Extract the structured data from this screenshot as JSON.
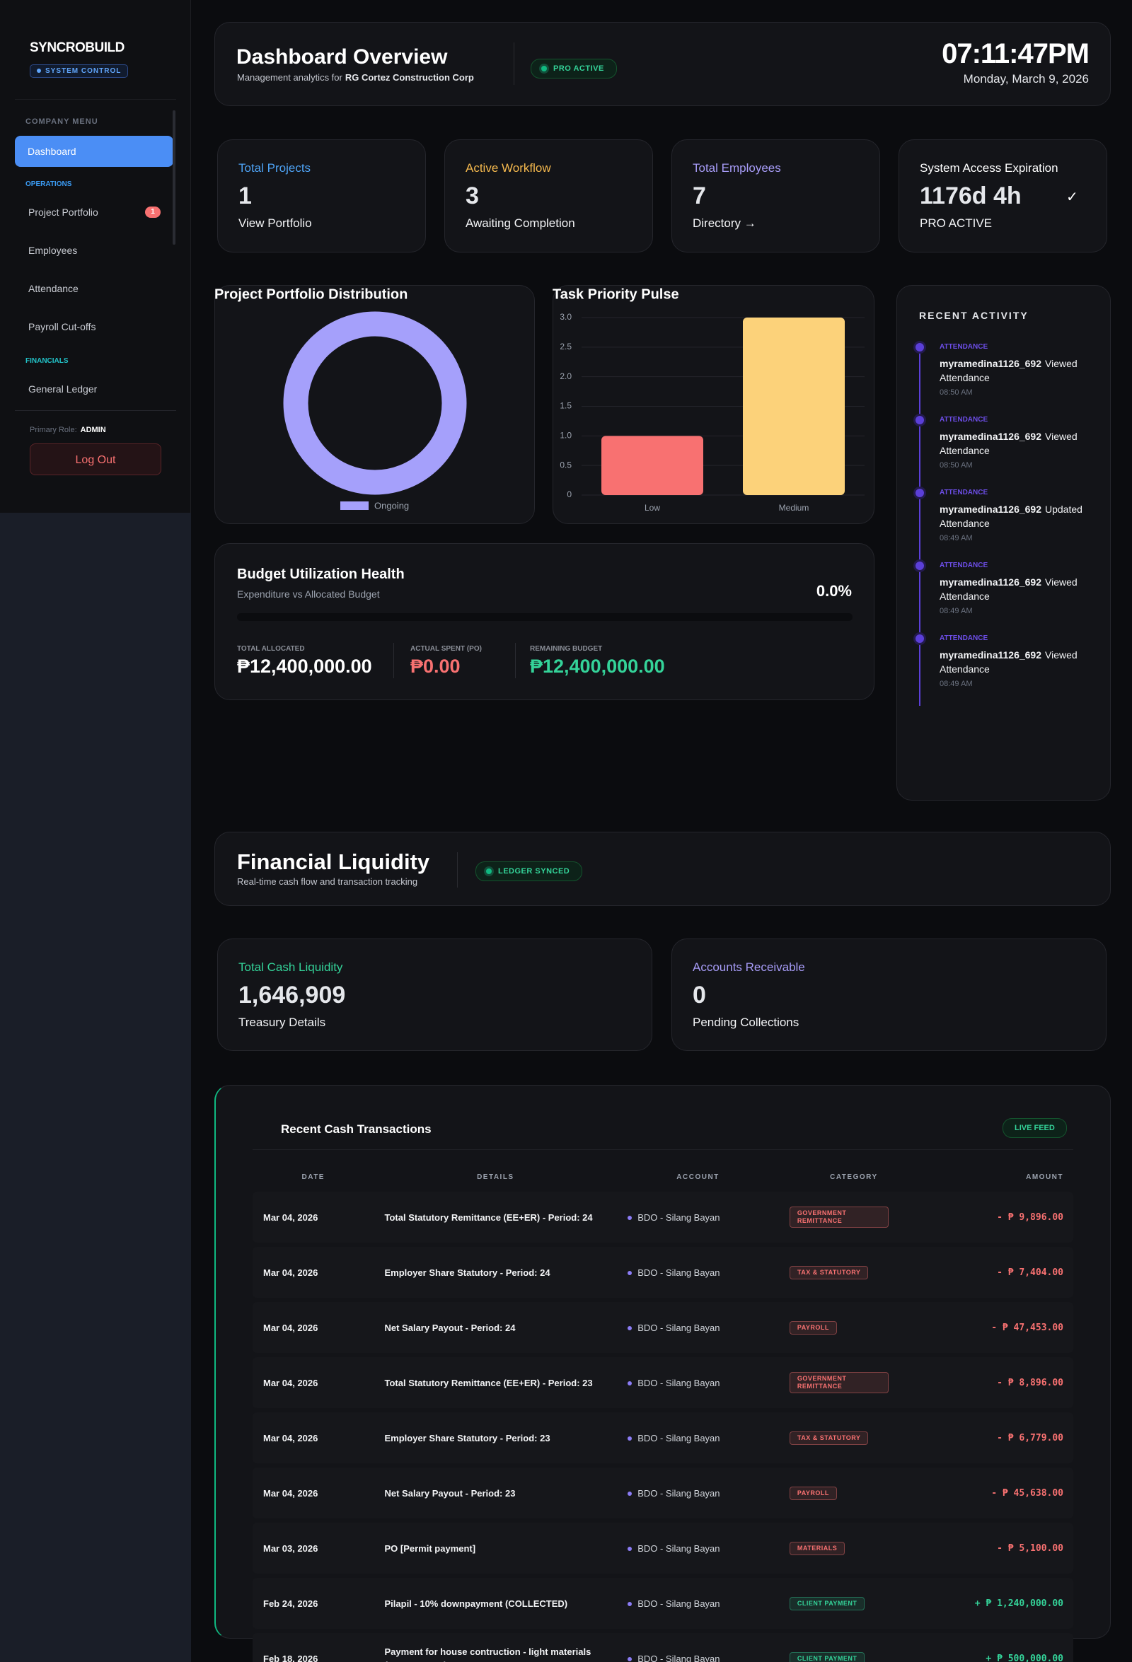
{
  "sidebar": {
    "brand": "SYNCROBUILD",
    "badge": "SYSTEM CONTROL",
    "menu_title": "COMPANY MENU",
    "active": "Dashboard",
    "operations_title": "OPERATIONS",
    "operations": [
      "Project Portfolio",
      "Employees",
      "Attendance",
      "Payroll Cut-offs"
    ],
    "portfolio_badge": "1",
    "financials_title": "FINANCIALS",
    "financials": [
      "General Ledger"
    ],
    "role_label": "Primary Role:",
    "role": "ADMIN",
    "logout": "Log Out"
  },
  "header": {
    "title": "Dashboard Overview",
    "subtitle": "Management analytics for",
    "company": "RG Cortez Construction Corp",
    "status": "PRO ACTIVE",
    "time": "07:11:47PM",
    "date": "Monday, March 9, 2026"
  },
  "stats": [
    {
      "label": "Total Projects",
      "value": "1",
      "link": "View Portfolio",
      "color": "#4ea3f5"
    },
    {
      "label": "Active Workflow",
      "value": "3",
      "link": "Awaiting Completion",
      "color": "#f5b94e"
    },
    {
      "label": "Total Employees",
      "value": "7",
      "link": "Directory →",
      "color": "#a79cf7"
    },
    {
      "label": "System Access Expiration",
      "value": "1176d 4h",
      "link": "PRO ACTIVE",
      "color": "#ffffff",
      "check": "✓"
    }
  ],
  "chart_data": [
    {
      "type": "donut",
      "title": "Project Portfolio Distribution",
      "categories": [
        "Ongoing"
      ],
      "values": [
        1
      ],
      "colors": [
        "#a5a0fb"
      ]
    },
    {
      "type": "bar",
      "title": "Task Priority Pulse",
      "categories": [
        "Low",
        "Medium"
      ],
      "values": [
        1,
        3
      ],
      "colors": [
        "#f87171",
        "#fcd27a"
      ],
      "ylim": [
        0,
        3
      ],
      "yticks": [
        0,
        0.5,
        {
          "value": 1,
          "label": "1.0"
        },
        1.5,
        {
          "value": 2,
          "label": "2.0"
        },
        2.5,
        {
          "value": 3,
          "label": "3.0"
        }
      ],
      "grid": true
    }
  ],
  "budget": {
    "title": "Budget Utilization Health",
    "subtitle": "Expenditure vs Allocated Budget",
    "percent": "0.0%",
    "allocated_label": "TOTAL ALLOCATED",
    "allocated": "₱12,400,000.00",
    "spent_label": "ACTUAL SPENT (PO)",
    "spent": "₱0.00",
    "remaining_label": "REMAINING BUDGET",
    "remaining": "₱12,400,000.00"
  },
  "activity": {
    "title": "RECENT ACTIVITY",
    "items": [
      {
        "tag": "ATTENDANCE",
        "user": "myramedina1126_692",
        "action": "Viewed Attendance",
        "time": "08:50 AM"
      },
      {
        "tag": "ATTENDANCE",
        "user": "myramedina1126_692",
        "action": "Viewed Attendance",
        "time": "08:50 AM"
      },
      {
        "tag": "ATTENDANCE",
        "user": "myramedina1126_692",
        "action": "Updated Attendance",
        "time": "08:49 AM"
      },
      {
        "tag": "ATTENDANCE",
        "user": "myramedina1126_692",
        "action": "Viewed Attendance",
        "time": "08:49 AM"
      },
      {
        "tag": "ATTENDANCE",
        "user": "myramedina1126_692",
        "action": "Viewed Attendance",
        "time": "08:49 AM"
      }
    ]
  },
  "finance": {
    "title": "Financial Liquidity",
    "subtitle": "Real-time cash flow and transaction tracking",
    "status": "LEDGER SYNCED",
    "cards": [
      {
        "label": "Total Cash Liquidity",
        "value": "1,646,909",
        "link": "Treasury Details",
        "color": "#34d399"
      },
      {
        "label": "Accounts Receivable",
        "value": "0",
        "link": "Pending Collections",
        "color": "#a79cf7"
      }
    ]
  },
  "transactions": {
    "title": "Recent Cash Transactions",
    "badge": "LIVE FEED",
    "columns": [
      "DATE",
      "DETAILS",
      "ACCOUNT",
      "CATEGORY",
      "AMOUNT"
    ],
    "rows": [
      {
        "date": "Mar 04, 2026",
        "details": "Total Statutory Remittance (EE+ER) - Period: 24",
        "account": "BDO - Silang Bayan",
        "category": "GOVERNMENT REMITTANCE",
        "amount": "- ₱ 9,896.00",
        "color": "#f87171"
      },
      {
        "date": "Mar 04, 2026",
        "details": "Employer Share Statutory - Period: 24",
        "account": "BDO - Silang Bayan",
        "category": "TAX & STATUTORY",
        "amount": "- ₱ 7,404.00",
        "color": "#f87171"
      },
      {
        "date": "Mar 04, 2026",
        "details": "Net Salary Payout - Period: 24",
        "account": "BDO - Silang Bayan",
        "category": "PAYROLL",
        "amount": "- ₱ 47,453.00",
        "color": "#f87171"
      },
      {
        "date": "Mar 04, 2026",
        "details": "Total Statutory Remittance (EE+ER) - Period: 23",
        "account": "BDO - Silang Bayan",
        "category": "GOVERNMENT REMITTANCE",
        "amount": "- ₱ 8,896.00",
        "color": "#f87171"
      },
      {
        "date": "Mar 04, 2026",
        "details": "Employer Share Statutory - Period: 23",
        "account": "BDO - Silang Bayan",
        "category": "TAX & STATUTORY",
        "amount": "- ₱ 6,779.00",
        "color": "#f87171"
      },
      {
        "date": "Mar 04, 2026",
        "details": "Net Salary Payout - Period: 23",
        "account": "BDO - Silang Bayan",
        "category": "PAYROLL",
        "amount": "- ₱ 45,638.00",
        "color": "#f87171"
      },
      {
        "date": "Mar 03, 2026",
        "details": "PO [Permit payment]",
        "account": "BDO - Silang Bayan",
        "category": "MATERIALS",
        "amount": "- ₱ 5,100.00",
        "color": "#f87171"
      },
      {
        "date": "Feb 24, 2026",
        "details": "Pilapil - 10% downpayment (COLLECTED)",
        "account": "BDO - Silang Bayan",
        "category": "CLIENT PAYMENT",
        "amount": "+ ₱ 1,240,000.00",
        "color": "#34d399"
      },
      {
        "date": "Feb 18, 2026",
        "details": "Payment for house contruction - light materials (COLLECTED)",
        "account": "BDO - Silang Bayan",
        "category": "CLIENT PAYMENT",
        "amount": "+ ₱ 500,000.00",
        "color": "#34d399"
      }
    ]
  }
}
